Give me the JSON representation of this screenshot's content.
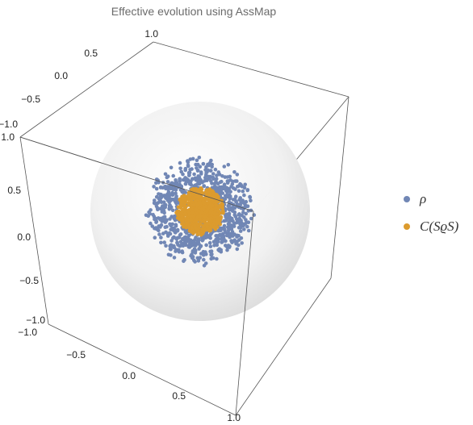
{
  "title": "Effective evolution using AssMap",
  "colors": {
    "rho": "#7187b5",
    "crho": "#dc9b2e",
    "sphere": "#e6e6e6"
  },
  "chart_data": {
    "type": "scatter",
    "dimensions": 3,
    "axes": {
      "x": {
        "range": [
          -1.0,
          1.0
        ],
        "ticks": [
          "−1.0",
          "−0.5",
          "0.0",
          "0.5",
          "1.0"
        ]
      },
      "y": {
        "range": [
          -1.0,
          1.0
        ],
        "ticks": [
          "−1.0",
          "−0.5",
          "0.0",
          "0.5",
          "1.0"
        ]
      },
      "z": {
        "range": [
          -1.0,
          1.0
        ],
        "ticks": [
          "−1.0",
          "−0.5",
          "0.0",
          "0.5",
          "1.0"
        ]
      }
    },
    "reference_sphere_radius": 1.0,
    "series": [
      {
        "name": "ρ",
        "color": "#7187b5",
        "shape": "spherical shell",
        "radius_range": [
          0.28,
          0.5
        ]
      },
      {
        "name": "C(SϱS)",
        "color": "#dc9b2e",
        "shape": "ball",
        "radius_range": [
          0.0,
          0.22
        ]
      }
    ],
    "legend_position": "right"
  }
}
